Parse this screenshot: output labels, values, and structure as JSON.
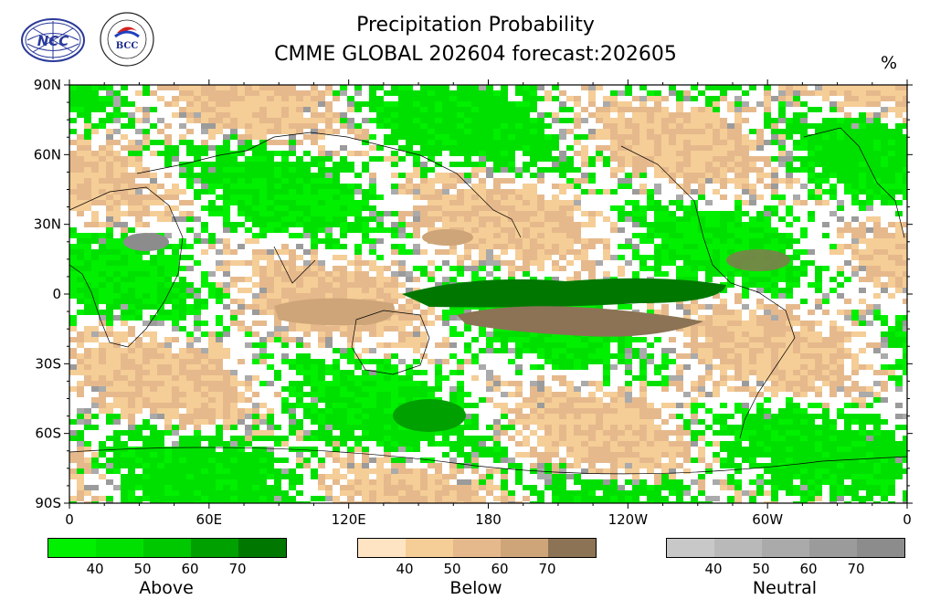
{
  "title": {
    "line1": "Precipitation Probability",
    "line2": "CMME GLOBAL 202604 forecast:202605",
    "unit": "%"
  },
  "logos": {
    "left": {
      "text": "NCC",
      "icon": "ncc-logo-icon"
    },
    "right": {
      "text": "BCC",
      "icon": "bcc-logo-icon"
    }
  },
  "axes": {
    "y_ticks": [
      "90N",
      "60N",
      "30N",
      "0",
      "30S",
      "60S",
      "90S"
    ],
    "x_ticks": [
      "0",
      "60E",
      "120E",
      "180",
      "120W",
      "60W",
      "0"
    ]
  },
  "colorbars": [
    {
      "name": "Above",
      "ticks": [
        "40",
        "50",
        "60",
        "70"
      ],
      "colors": [
        "#00f000",
        "#00e000",
        "#00c800",
        "#00a000",
        "#007800"
      ]
    },
    {
      "name": "Below",
      "ticks": [
        "40",
        "50",
        "60",
        "70"
      ],
      "colors": [
        "#ffe4c4",
        "#f5cd96",
        "#e6b98c",
        "#cda578",
        "#8c7355"
      ]
    },
    {
      "name": "Neutral",
      "ticks": [
        "40",
        "50",
        "60",
        "70"
      ],
      "colors": [
        "#c8c8c8",
        "#b9b9b9",
        "#aaaaaa",
        "#9b9b9b",
        "#8c8c8c"
      ]
    }
  ]
}
